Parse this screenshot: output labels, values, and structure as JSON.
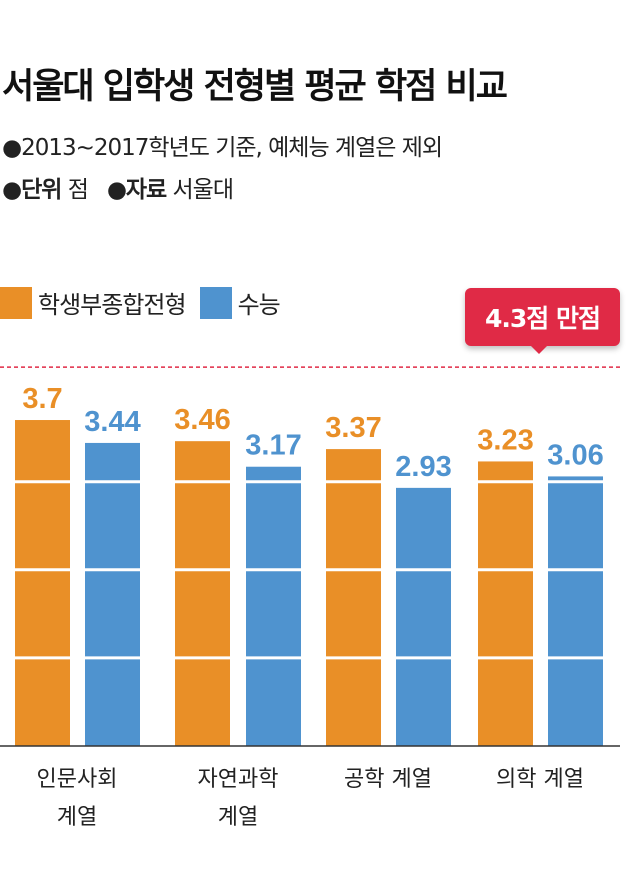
{
  "title": "서울대 입학생 전형별 평균 학점 비교",
  "subtitle": {
    "note": "●2013~2017학년도 기준, 예체능 계열은 제외",
    "unit_label": "●단위",
    "unit_value": "점",
    "source_label": "●자료",
    "source_value": "서울대"
  },
  "badge": "4.3점 만점",
  "colors": {
    "series1": "#e98f27",
    "series2": "#4f93cf",
    "reference": "#e02a46"
  },
  "chart_data": {
    "type": "bar",
    "categories": [
      [
        "인문사회",
        "계열"
      ],
      [
        "자연과학",
        "계열"
      ],
      [
        "공학 계열"
      ],
      [
        "의학 계열"
      ]
    ],
    "series": [
      {
        "name": "학생부종합전형",
        "values": [
          3.7,
          3.46,
          3.37,
          3.23
        ],
        "labels": [
          "3.7",
          "3.46",
          "3.37",
          "3.23"
        ]
      },
      {
        "name": "수능",
        "values": [
          3.44,
          3.17,
          2.93,
          3.06
        ],
        "labels": [
          "3.44",
          "3.17",
          "2.93",
          "3.06"
        ]
      }
    ],
    "reference_line": 4.3,
    "ylim": [
      0,
      4.3
    ],
    "grid": true,
    "legend": "top-left"
  }
}
